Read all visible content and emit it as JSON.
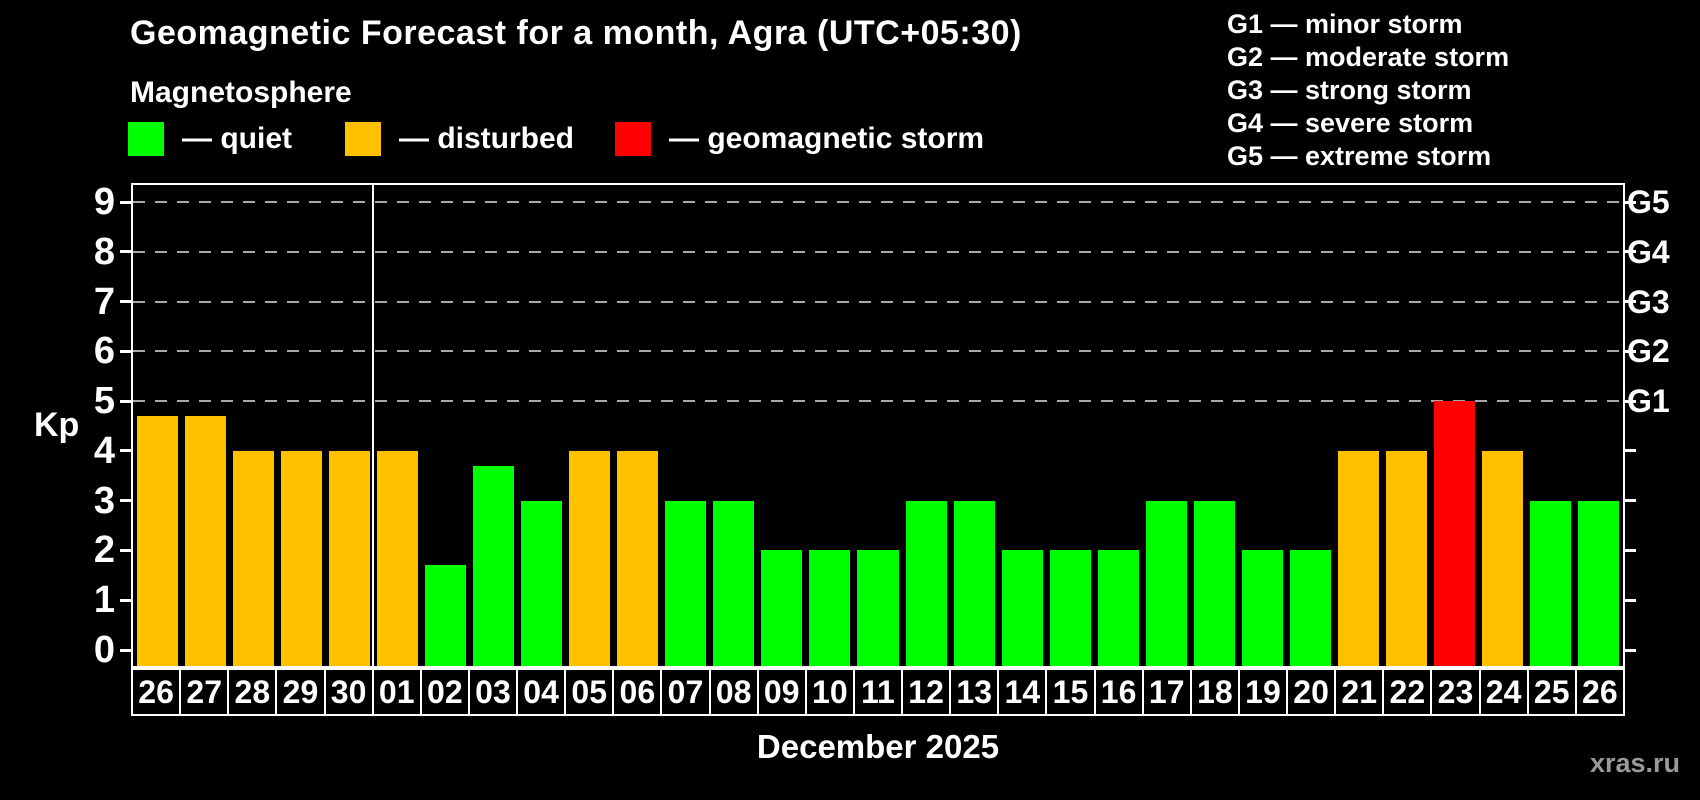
{
  "header": {
    "title": "Geomagnetic Forecast for a month, Agra (UTC+05:30)",
    "subtitle": "Magnetosphere"
  },
  "legend": {
    "quiet": {
      "label": "— quiet",
      "color": "#00ff00"
    },
    "disturbed": {
      "label": "— disturbed",
      "color": "#ffc000"
    },
    "storm": {
      "label": "— geomagnetic storm",
      "color": "#ff0000"
    }
  },
  "g_legend": {
    "items": [
      "G1 — minor storm",
      "G2 — moderate storm",
      "G3 — strong storm",
      "G4 — severe storm",
      "G5 — extreme storm"
    ]
  },
  "chart_data": {
    "type": "bar",
    "title": "Geomagnetic Forecast for a month, Agra (UTC+05:30)",
    "ylabel": "Kp",
    "xlabel": "December 2025",
    "ylim": [
      0,
      9
    ],
    "yticks": [
      0,
      1,
      2,
      3,
      4,
      5,
      6,
      7,
      8,
      9
    ],
    "gridline_values": [
      5,
      6,
      7,
      8,
      9
    ],
    "grid_style": "horizontal dashed at storm levels only",
    "right_axis_labels": [
      {
        "label": "G1",
        "value": 5
      },
      {
        "label": "G2",
        "value": 6
      },
      {
        "label": "G3",
        "value": 7
      },
      {
        "label": "G4",
        "value": 8
      },
      {
        "label": "G5",
        "value": 9
      }
    ],
    "month_separator_after_index": 4,
    "categories": [
      "26",
      "27",
      "28",
      "29",
      "30",
      "01",
      "02",
      "03",
      "04",
      "05",
      "06",
      "07",
      "08",
      "09",
      "10",
      "11",
      "12",
      "13",
      "14",
      "15",
      "16",
      "17",
      "18",
      "19",
      "20",
      "21",
      "22",
      "23",
      "24",
      "25",
      "26"
    ],
    "values": [
      4.7,
      4.7,
      4,
      4,
      4,
      4,
      1.7,
      3.7,
      3,
      4,
      4,
      3,
      3,
      2,
      2,
      2,
      3,
      3,
      2,
      2,
      2,
      3,
      3,
      2,
      2,
      4,
      4,
      5,
      4,
      3,
      3
    ],
    "statuses": [
      "disturbed",
      "disturbed",
      "disturbed",
      "disturbed",
      "disturbed",
      "disturbed",
      "quiet",
      "quiet",
      "quiet",
      "disturbed",
      "disturbed",
      "quiet",
      "quiet",
      "quiet",
      "quiet",
      "quiet",
      "quiet",
      "quiet",
      "quiet",
      "quiet",
      "quiet",
      "quiet",
      "quiet",
      "quiet",
      "quiet",
      "disturbed",
      "disturbed",
      "storm",
      "disturbed",
      "quiet",
      "quiet"
    ],
    "colors": {
      "quiet": "#00ff00",
      "disturbed": "#ffc000",
      "storm": "#ff0000"
    },
    "legend_position": "top-left",
    "background": "#000000"
  },
  "footer": {
    "xlabel": "December 2025",
    "watermark": "xras.ru"
  }
}
